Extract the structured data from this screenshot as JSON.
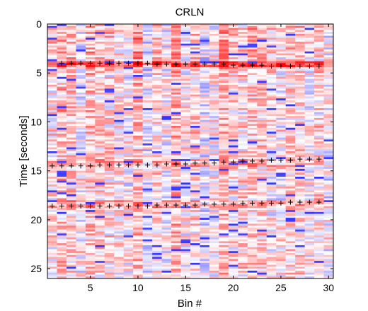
{
  "chart_data": {
    "type": "heatmap",
    "title": "CRLN",
    "xlabel": "Bin #",
    "ylabel": "Time [seconds]",
    "xlim": [
      0.5,
      30.5
    ],
    "ylim": [
      0,
      26
    ],
    "y_reversed": true,
    "x_ticks": [
      5,
      10,
      15,
      20,
      25,
      30
    ],
    "y_ticks": [
      0,
      5,
      10,
      15,
      20,
      25
    ],
    "colormap": {
      "negative": "#0000ff",
      "zero": "#ffffff",
      "positive": "#ff0000"
    },
    "bins": 30,
    "time_rows": 26,
    "marker": "+",
    "marker_color": "#000000",
    "marker_series": [
      {
        "x": [
          2,
          3,
          4,
          5,
          6,
          7,
          8,
          9,
          10,
          11,
          12,
          13,
          14,
          15,
          16,
          17,
          18,
          19,
          20,
          21,
          22,
          23,
          24,
          25,
          26,
          27,
          28,
          29
        ],
        "y": [
          4.0,
          4.0,
          4.0,
          4.0,
          4.0,
          4.0,
          4.0,
          4.0,
          4.0,
          4.0,
          4.1,
          4.1,
          4.1,
          4.1,
          4.1,
          4.1,
          4.1,
          4.1,
          4.2,
          4.2,
          4.2,
          4.2,
          4.3,
          4.3,
          4.3,
          4.3,
          4.3,
          4.3
        ]
      },
      {
        "x": [
          1,
          2,
          3,
          4,
          5,
          6,
          7,
          8,
          9,
          10,
          11,
          12,
          13,
          14,
          15,
          16,
          17,
          18,
          19,
          20,
          21,
          22,
          23,
          24,
          25,
          26,
          27,
          28,
          29
        ],
        "y": [
          14.5,
          14.5,
          14.5,
          14.5,
          14.5,
          14.4,
          14.4,
          14.4,
          14.4,
          14.4,
          14.4,
          14.4,
          14.3,
          14.3,
          14.3,
          14.2,
          14.2,
          14.2,
          14.1,
          14.1,
          14.0,
          14.0,
          14.0,
          13.9,
          13.9,
          13.9,
          13.8,
          13.8,
          13.8
        ]
      },
      {
        "x": [
          1,
          2,
          3,
          4,
          5,
          6,
          7,
          8,
          9,
          10,
          11,
          12,
          13,
          14,
          15,
          16,
          17,
          18,
          19,
          20,
          21,
          22,
          23,
          24,
          25,
          26,
          27,
          28,
          29
        ],
        "y": [
          18.6,
          18.6,
          18.6,
          18.6,
          18.6,
          18.6,
          18.6,
          18.6,
          18.6,
          18.6,
          18.6,
          18.5,
          18.5,
          18.5,
          18.5,
          18.5,
          18.4,
          18.4,
          18.4,
          18.4,
          18.3,
          18.3,
          18.3,
          18.3,
          18.3,
          18.2,
          18.2,
          18.2,
          18.2
        ]
      }
    ]
  }
}
